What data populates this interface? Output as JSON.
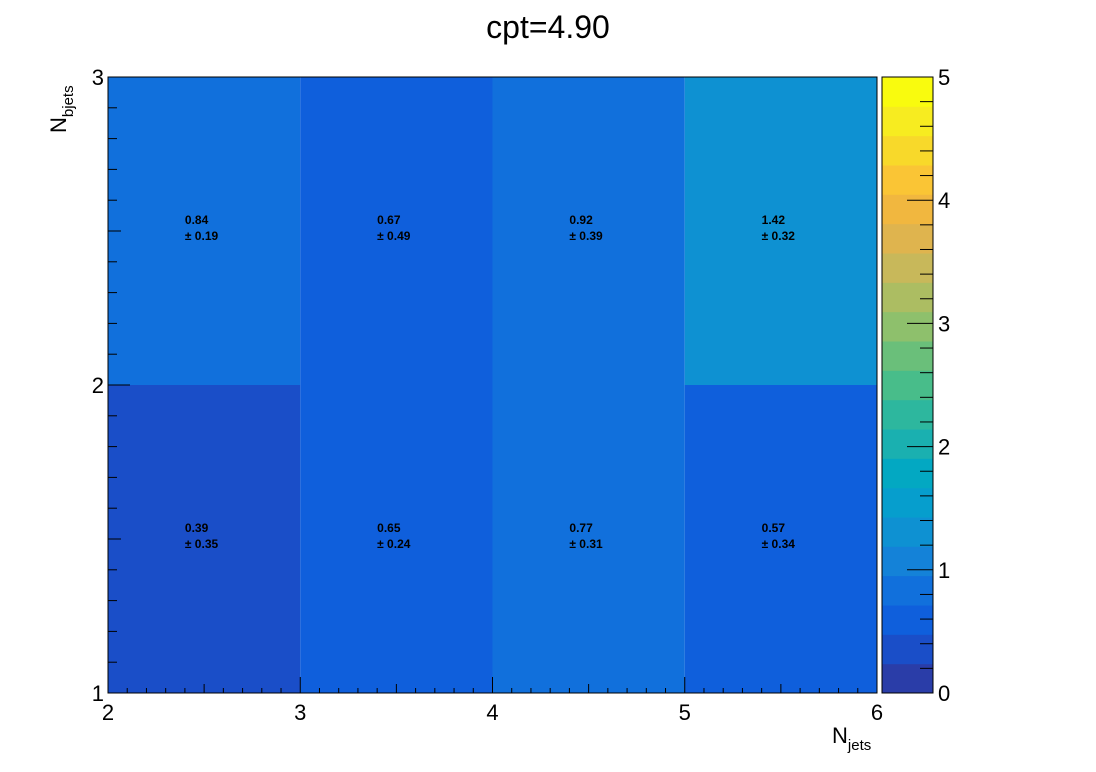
{
  "chart_data": {
    "type": "heatmap",
    "title": "cpt=4.90",
    "xlabel": {
      "main": "N",
      "sub": "jets"
    },
    "ylabel": {
      "main": "N",
      "sub": "bjets"
    },
    "x_edges": [
      2,
      3,
      4,
      5,
      6
    ],
    "y_edges": [
      1,
      2,
      3
    ],
    "x_ticks": [
      "2",
      "3",
      "4",
      "5",
      "6"
    ],
    "y_ticks": [
      "1",
      "2",
      "3"
    ],
    "zlim": [
      0,
      5
    ],
    "z_ticks": [
      "0",
      "1",
      "2",
      "3",
      "4",
      "5"
    ],
    "cells": [
      {
        "x": 2,
        "y": 1,
        "value": 0.39,
        "error": 0.35,
        "label": "0.39",
        "err_label": "± 0.35"
      },
      {
        "x": 3,
        "y": 1,
        "value": 0.65,
        "error": 0.24,
        "label": "0.65",
        "err_label": "± 0.24"
      },
      {
        "x": 4,
        "y": 1,
        "value": 0.77,
        "error": 0.31,
        "label": "0.77",
        "err_label": "± 0.31"
      },
      {
        "x": 5,
        "y": 1,
        "value": 0.57,
        "error": 0.34,
        "label": "0.57",
        "err_label": "± 0.34"
      },
      {
        "x": 2,
        "y": 2,
        "value": 0.84,
        "error": 0.19,
        "label": "0.84",
        "err_label": "± 0.19"
      },
      {
        "x": 3,
        "y": 2,
        "value": 0.67,
        "error": 0.49,
        "label": "0.67",
        "err_label": "± 0.49"
      },
      {
        "x": 4,
        "y": 2,
        "value": 0.92,
        "error": 0.39,
        "label": "0.92",
        "err_label": "± 0.39"
      },
      {
        "x": 5,
        "y": 2,
        "value": 1.42,
        "error": 0.32,
        "label": "1.42",
        "err_label": "± 0.32"
      }
    ],
    "palette": [
      "#2a3da8",
      "#1a4ec8",
      "#0f5fdc",
      "#1170dc",
      "#1482d8",
      "#0e91d2",
      "#069ecd",
      "#03a8c2",
      "#1ab0b0",
      "#2db79e",
      "#48bd8a",
      "#6abf7a",
      "#8ec06c",
      "#acbd62",
      "#c8b85a",
      "#dfb44e",
      "#f1b73f",
      "#fac535",
      "#f8d92a",
      "#f7ec20",
      "#f9fb0e"
    ],
    "grid": false,
    "legend": "colorbar-right"
  }
}
